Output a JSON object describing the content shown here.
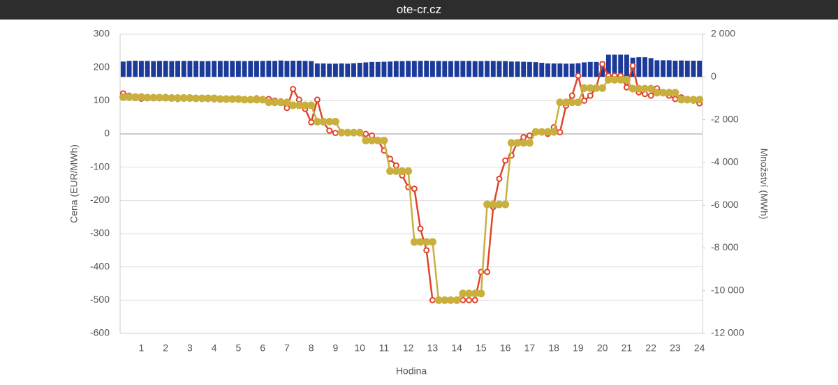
{
  "header": {
    "title": "ote-cr.cz"
  },
  "chart_data": {
    "type": "combo",
    "xlabel": "Hodina",
    "ylabel": "Cena (EUR/MWh)",
    "y2label": "Množství (MWh)",
    "categories": [
      null,
      null,
      null,
      "1",
      null,
      null,
      null,
      "2",
      null,
      null,
      null,
      "3",
      null,
      null,
      null,
      "4",
      null,
      null,
      null,
      "5",
      null,
      null,
      null,
      "6",
      null,
      null,
      null,
      "7",
      null,
      null,
      null,
      "8",
      null,
      null,
      null,
      "9",
      null,
      null,
      null,
      "10",
      null,
      null,
      null,
      "11",
      null,
      null,
      null,
      "12",
      null,
      null,
      null,
      "13",
      null,
      null,
      null,
      "14",
      null,
      null,
      null,
      "15",
      null,
      null,
      null,
      "16",
      null,
      null,
      null,
      "17",
      null,
      null,
      null,
      "18",
      null,
      null,
      null,
      "19",
      null,
      null,
      null,
      "20",
      null,
      null,
      null,
      "21",
      null,
      null,
      null,
      "22",
      null,
      null,
      null,
      "23",
      null,
      null,
      null,
      "24"
    ],
    "ylim": [
      -600,
      300
    ],
    "yticks": [
      300,
      200,
      100,
      0,
      -100,
      -200,
      -300,
      -400,
      -500,
      -600
    ],
    "y2lim": [
      -12000,
      2000
    ],
    "y2ticks": [
      {
        "value": 2000,
        "label": "2 000"
      },
      0,
      {
        "value": -2000,
        "label": "-2 000"
      },
      {
        "value": -4000,
        "label": "-4 000"
      },
      {
        "value": -6000,
        "label": "-6 000"
      },
      {
        "value": -8000,
        "label": "-8 000"
      },
      {
        "value": -10000,
        "label": "-10 000"
      },
      {
        "value": -12000,
        "label": "-12 000"
      }
    ],
    "grid": true,
    "series": [
      {
        "kind": "bar",
        "axis": "y2",
        "color": "#1b3a9a",
        "values": [
          720,
          750,
          760,
          750,
          750,
          740,
          750,
          750,
          740,
          750,
          750,
          750,
          750,
          740,
          740,
          750,
          750,
          750,
          750,
          750,
          740,
          750,
          750,
          750,
          760,
          750,
          770,
          750,
          760,
          760,
          750,
          740,
          630,
          630,
          620,
          620,
          630,
          620,
          640,
          660,
          680,
          700,
          700,
          710,
          720,
          740,
          740,
          750,
          750,
          750,
          760,
          750,
          750,
          740,
          740,
          750,
          750,
          750,
          740,
          740,
          750,
          750,
          740,
          740,
          720,
          720,
          710,
          700,
          690,
          660,
          630,
          630,
          630,
          620,
          620,
          640,
          680,
          700,
          700,
          720,
          1040,
          1040,
          1040,
          1040,
          900,
          920,
          920,
          880,
          780,
          780,
          780,
          760,
          770,
          760,
          760,
          760
        ]
      },
      {
        "kind": "line",
        "axis": "y",
        "color": "#e0452b",
        "marker": "open",
        "values": [
          122,
          115,
          108,
          106,
          110,
          109,
          108,
          107,
          108,
          105,
          110,
          108,
          107,
          106,
          105,
          104,
          106,
          103,
          104,
          105,
          104,
          103,
          107,
          105,
          105,
          100,
          98,
          78,
          135,
          103,
          75,
          35,
          103,
          35,
          10,
          3,
          3,
          2,
          2,
          2,
          0,
          -5,
          -20,
          -50,
          -75,
          -95,
          -125,
          -160,
          -165,
          -285,
          -350,
          -500,
          -500,
          -500,
          -500,
          -500,
          -500,
          -500,
          -500,
          -415,
          -415,
          -220,
          -135,
          -80,
          -65,
          -25,
          -10,
          -5,
          5,
          5,
          0,
          20,
          5,
          85,
          115,
          175,
          100,
          115,
          140,
          210,
          175,
          175,
          175,
          140,
          205,
          125,
          120,
          115,
          137,
          125,
          115,
          105,
          110,
          105,
          100,
          92
        ]
      },
      {
        "kind": "line",
        "axis": "y",
        "color": "#c9b03e",
        "marker": "filled",
        "values": [
          111,
          111,
          111,
          111,
          109,
          109,
          109,
          109,
          108,
          108,
          108,
          108,
          107,
          107,
          107,
          107,
          105,
          105,
          105,
          105,
          103,
          103,
          103,
          103,
          95,
          95,
          95,
          95,
          86,
          86,
          86,
          86,
          37,
          37,
          37,
          37,
          4,
          4,
          4,
          4,
          -20,
          -20,
          -20,
          -20,
          -112,
          -112,
          -112,
          -112,
          -325,
          -325,
          -325,
          -325,
          -500,
          -500,
          -500,
          -500,
          -480,
          -480,
          -480,
          -480,
          -212,
          -212,
          -212,
          -212,
          -27,
          -27,
          -27,
          -27,
          6,
          6,
          6,
          6,
          95,
          95,
          95,
          95,
          138,
          138,
          138,
          138,
          163,
          163,
          163,
          163,
          136,
          136,
          136,
          136,
          124,
          124,
          124,
          124,
          103,
          103,
          103,
          103
        ]
      }
    ]
  }
}
